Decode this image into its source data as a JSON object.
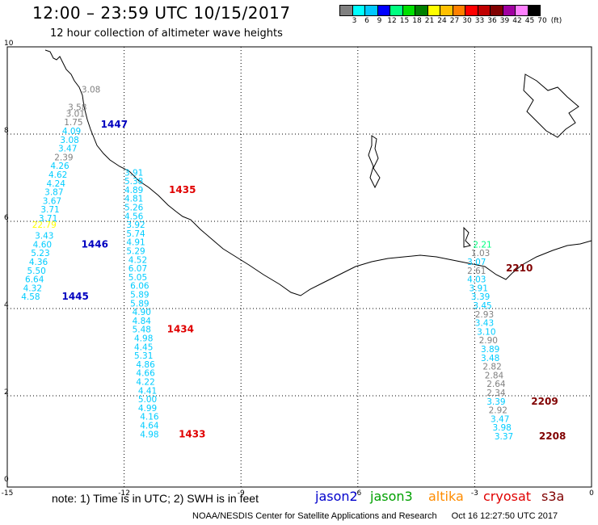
{
  "title": "12:00 – 23:59 UTC 10/15/2017",
  "subtitle": "12 hour collection of altimeter wave heights",
  "scale": {
    "unit_label": "(ft)",
    "colors": [
      "#808080",
      "#00ffff",
      "#00c8ff",
      "#0000ff",
      "#00ff80",
      "#00e000",
      "#008000",
      "#ffff00",
      "#ffc000",
      "#ff8000",
      "#ff0000",
      "#c00000",
      "#800000",
      "#a000a0",
      "#ff80ff",
      "#000000"
    ],
    "ticks": [
      "3",
      "6",
      "9",
      "12",
      "15",
      "18",
      "21",
      "24",
      "27",
      "30",
      "33",
      "36",
      "39",
      "42",
      "45",
      "70"
    ]
  },
  "axes": {
    "x_ticks": [
      "-15",
      "-12",
      "-9",
      "-6",
      "-3",
      "0"
    ],
    "y_ticks": [
      "10",
      "8",
      "6",
      "4",
      "2",
      "0"
    ]
  },
  "tracks": [
    {
      "satellite": "jason2",
      "readings": [
        {
          "lon": -12.85,
          "lat": 8.95,
          "v": "3.08",
          "c": "#808080"
        },
        {
          "lon": -13.2,
          "lat": 8.55,
          "v": "3.58",
          "c": "#808080"
        },
        {
          "lon": -13.25,
          "lat": 8.4,
          "v": "3.01",
          "c": "#808080"
        },
        {
          "lon": -13.3,
          "lat": 8.2,
          "v": "1.75",
          "c": "#808080"
        },
        {
          "lon": -13.35,
          "lat": 8.0,
          "v": "4.09",
          "c": "#00ccff"
        },
        {
          "lon": -13.4,
          "lat": 7.8,
          "v": "3.08",
          "c": "#00ccff"
        },
        {
          "lon": -13.45,
          "lat": 7.6,
          "v": "3.47",
          "c": "#00ccff"
        },
        {
          "lon": -13.55,
          "lat": 7.4,
          "v": "2.39",
          "c": "#808080"
        },
        {
          "lon": -13.65,
          "lat": 7.2,
          "v": "4.26",
          "c": "#00ccff"
        },
        {
          "lon": -13.7,
          "lat": 7.0,
          "v": "4.62",
          "c": "#00ccff"
        },
        {
          "lon": -13.75,
          "lat": 6.8,
          "v": "4.24",
          "c": "#00ccff"
        },
        {
          "lon": -13.8,
          "lat": 6.6,
          "v": "3.87",
          "c": "#00ccff"
        },
        {
          "lon": -13.85,
          "lat": 6.4,
          "v": "3.67",
          "c": "#00ccff"
        },
        {
          "lon": -13.9,
          "lat": 6.2,
          "v": "3.71",
          "c": "#00ccff"
        },
        {
          "lon": -13.95,
          "lat": 6.0,
          "v": "3.71",
          "c": "#00ccff"
        },
        {
          "lon": -14.05,
          "lat": 5.85,
          "v": "22.79",
          "c": "#ffff00"
        },
        {
          "lon": -14.05,
          "lat": 5.6,
          "v": "3.43",
          "c": "#00ccff"
        },
        {
          "lon": -14.1,
          "lat": 5.4,
          "v": "4.60",
          "c": "#00ccff"
        },
        {
          "lon": -14.15,
          "lat": 5.2,
          "v": "5.23",
          "c": "#00ccff"
        },
        {
          "lon": -14.2,
          "lat": 5.0,
          "v": "4.36",
          "c": "#00ccff"
        },
        {
          "lon": -14.25,
          "lat": 4.8,
          "v": "5.50",
          "c": "#00ccff"
        },
        {
          "lon": -14.3,
          "lat": 4.6,
          "v": "6.64",
          "c": "#00ccff"
        },
        {
          "lon": -14.35,
          "lat": 4.4,
          "v": "4.32",
          "c": "#00ccff"
        },
        {
          "lon": -14.4,
          "lat": 4.2,
          "v": "4.58",
          "c": "#00ccff"
        }
      ],
      "time_labels": [
        {
          "lon": -12.6,
          "lat": 8.15,
          "t": "1447",
          "c": "#0000c0"
        },
        {
          "lon": -13.1,
          "lat": 5.4,
          "t": "1446",
          "c": "#0000c0"
        },
        {
          "lon": -13.6,
          "lat": 4.2,
          "t": "1445",
          "c": "#0000c0"
        }
      ]
    },
    {
      "satellite": "jason3",
      "readings": [
        {
          "lon": -11.75,
          "lat": 7.05,
          "v": "3.91",
          "c": "#00ccff"
        },
        {
          "lon": -11.75,
          "lat": 6.85,
          "v": "5.38",
          "c": "#00ccff"
        },
        {
          "lon": -11.75,
          "lat": 6.65,
          "v": "4.89",
          "c": "#00ccff"
        },
        {
          "lon": -11.75,
          "lat": 6.45,
          "v": "4.81",
          "c": "#00ccff"
        },
        {
          "lon": -11.75,
          "lat": 6.25,
          "v": "5.26",
          "c": "#00ccff"
        },
        {
          "lon": -11.75,
          "lat": 6.05,
          "v": "4.56",
          "c": "#00ccff"
        },
        {
          "lon": -11.7,
          "lat": 5.85,
          "v": "3.92",
          "c": "#00ccff"
        },
        {
          "lon": -11.7,
          "lat": 5.65,
          "v": "5.74",
          "c": "#00ccff"
        },
        {
          "lon": -11.7,
          "lat": 5.45,
          "v": "4.91",
          "c": "#00ccff"
        },
        {
          "lon": -11.7,
          "lat": 5.25,
          "v": "5.29",
          "c": "#00ccff"
        },
        {
          "lon": -11.65,
          "lat": 5.05,
          "v": "4.52",
          "c": "#00ccff"
        },
        {
          "lon": -11.65,
          "lat": 4.85,
          "v": "6.07",
          "c": "#00ccff"
        },
        {
          "lon": -11.65,
          "lat": 4.65,
          "v": "5.05",
          "c": "#00ccff"
        },
        {
          "lon": -11.6,
          "lat": 4.45,
          "v": "6.06",
          "c": "#00ccff"
        },
        {
          "lon": -11.6,
          "lat": 4.25,
          "v": "5.89",
          "c": "#00ccff"
        },
        {
          "lon": -11.6,
          "lat": 4.05,
          "v": "5.89",
          "c": "#00ccff"
        },
        {
          "lon": -11.55,
          "lat": 3.85,
          "v": "4.90",
          "c": "#00ccff"
        },
        {
          "lon": -11.55,
          "lat": 3.65,
          "v": "4.84",
          "c": "#00ccff"
        },
        {
          "lon": -11.55,
          "lat": 3.45,
          "v": "5.48",
          "c": "#00ccff"
        },
        {
          "lon": -11.5,
          "lat": 3.25,
          "v": "4.98",
          "c": "#00ccff"
        },
        {
          "lon": -11.5,
          "lat": 3.05,
          "v": "4.45",
          "c": "#00ccff"
        },
        {
          "lon": -11.5,
          "lat": 2.85,
          "v": "5.31",
          "c": "#00ccff"
        },
        {
          "lon": -11.45,
          "lat": 2.65,
          "v": "4.86",
          "c": "#00ccff"
        },
        {
          "lon": -11.45,
          "lat": 2.45,
          "v": "4.66",
          "c": "#00ccff"
        },
        {
          "lon": -11.45,
          "lat": 2.25,
          "v": "4.22",
          "c": "#00ccff"
        },
        {
          "lon": -11.4,
          "lat": 2.05,
          "v": "4.41",
          "c": "#00ccff"
        },
        {
          "lon": -11.4,
          "lat": 1.85,
          "v": "5.00",
          "c": "#00ccff"
        },
        {
          "lon": -11.4,
          "lat": 1.65,
          "v": "4.99",
          "c": "#00ccff"
        },
        {
          "lon": -11.35,
          "lat": 1.45,
          "v": "4.16",
          "c": "#00ccff"
        },
        {
          "lon": -11.35,
          "lat": 1.25,
          "v": "4.64",
          "c": "#00ccff"
        },
        {
          "lon": -11.35,
          "lat": 1.05,
          "v": "4.98",
          "c": "#00ccff"
        }
      ],
      "time_labels": [
        {
          "lon": -10.85,
          "lat": 6.65,
          "t": "1435",
          "c": "#e00000"
        },
        {
          "lon": -10.9,
          "lat": 3.45,
          "t": "1434",
          "c": "#e00000"
        },
        {
          "lon": -10.6,
          "lat": 1.05,
          "t": "1433",
          "c": "#e00000"
        }
      ]
    },
    {
      "satellite": "s3a",
      "readings": [
        {
          "lon": -2.8,
          "lat": 5.4,
          "v": "2.21",
          "c": "#00ff80"
        },
        {
          "lon": -2.85,
          "lat": 5.2,
          "v": "1.03",
          "c": "#808080"
        },
        {
          "lon": -2.95,
          "lat": 5.0,
          "v": "3.07",
          "c": "#00ccff"
        },
        {
          "lon": -2.95,
          "lat": 4.8,
          "v": "2.61",
          "c": "#808080"
        },
        {
          "lon": -2.95,
          "lat": 4.6,
          "v": "4.03",
          "c": "#00ccff"
        },
        {
          "lon": -2.9,
          "lat": 4.4,
          "v": "3.91",
          "c": "#00ccff"
        },
        {
          "lon": -2.85,
          "lat": 4.2,
          "v": "3.39",
          "c": "#00ccff"
        },
        {
          "lon": -2.8,
          "lat": 4.0,
          "v": "3.45",
          "c": "#00ccff"
        },
        {
          "lon": -2.75,
          "lat": 3.8,
          "v": "2.93",
          "c": "#808080"
        },
        {
          "lon": -2.75,
          "lat": 3.6,
          "v": "3.43",
          "c": "#00ccff"
        },
        {
          "lon": -2.7,
          "lat": 3.4,
          "v": "3.10",
          "c": "#00ccff"
        },
        {
          "lon": -2.65,
          "lat": 3.2,
          "v": "2.90",
          "c": "#808080"
        },
        {
          "lon": -2.6,
          "lat": 3.0,
          "v": "3.89",
          "c": "#00ccff"
        },
        {
          "lon": -2.6,
          "lat": 2.8,
          "v": "3.48",
          "c": "#00ccff"
        },
        {
          "lon": -2.55,
          "lat": 2.6,
          "v": "2.82",
          "c": "#808080"
        },
        {
          "lon": -2.5,
          "lat": 2.4,
          "v": "2.84",
          "c": "#808080"
        },
        {
          "lon": -2.45,
          "lat": 2.2,
          "v": "2.64",
          "c": "#808080"
        },
        {
          "lon": -2.45,
          "lat": 2.0,
          "v": "2.34",
          "c": "#808080"
        },
        {
          "lon": -2.45,
          "lat": 1.8,
          "v": "3.39",
          "c": "#00ccff"
        },
        {
          "lon": -2.4,
          "lat": 1.6,
          "v": "2.92",
          "c": "#808080"
        },
        {
          "lon": -2.35,
          "lat": 1.4,
          "v": "3.47",
          "c": "#00ccff"
        },
        {
          "lon": -2.3,
          "lat": 1.2,
          "v": "3.98",
          "c": "#00ccff"
        },
        {
          "lon": -2.25,
          "lat": 1.0,
          "v": "3.37",
          "c": "#00ccff"
        }
      ],
      "time_labels": [
        {
          "lon": -2.2,
          "lat": 4.85,
          "t": "2210",
          "c": "#800000"
        },
        {
          "lon": -1.55,
          "lat": 1.8,
          "t": "2209",
          "c": "#800000"
        },
        {
          "lon": -1.35,
          "lat": 1.0,
          "t": "2208",
          "c": "#800000"
        }
      ]
    }
  ],
  "note": "note: 1) Time is in UTC; 2) SWH is in feet",
  "legend": [
    {
      "label": "jason2",
      "color": "#0000cc"
    },
    {
      "label": "jason3",
      "color": "#00a000"
    },
    {
      "label": "altika",
      "color": "#ff8c00"
    },
    {
      "label": "cryosat",
      "color": "#e00000"
    },
    {
      "label": "s3a",
      "color": "#800000"
    }
  ],
  "footer": {
    "source": "NOAA/NESDIS Center for Satellite Applications and Research",
    "timestamp": "Oct 16 12:27:50 UTC 2017"
  }
}
